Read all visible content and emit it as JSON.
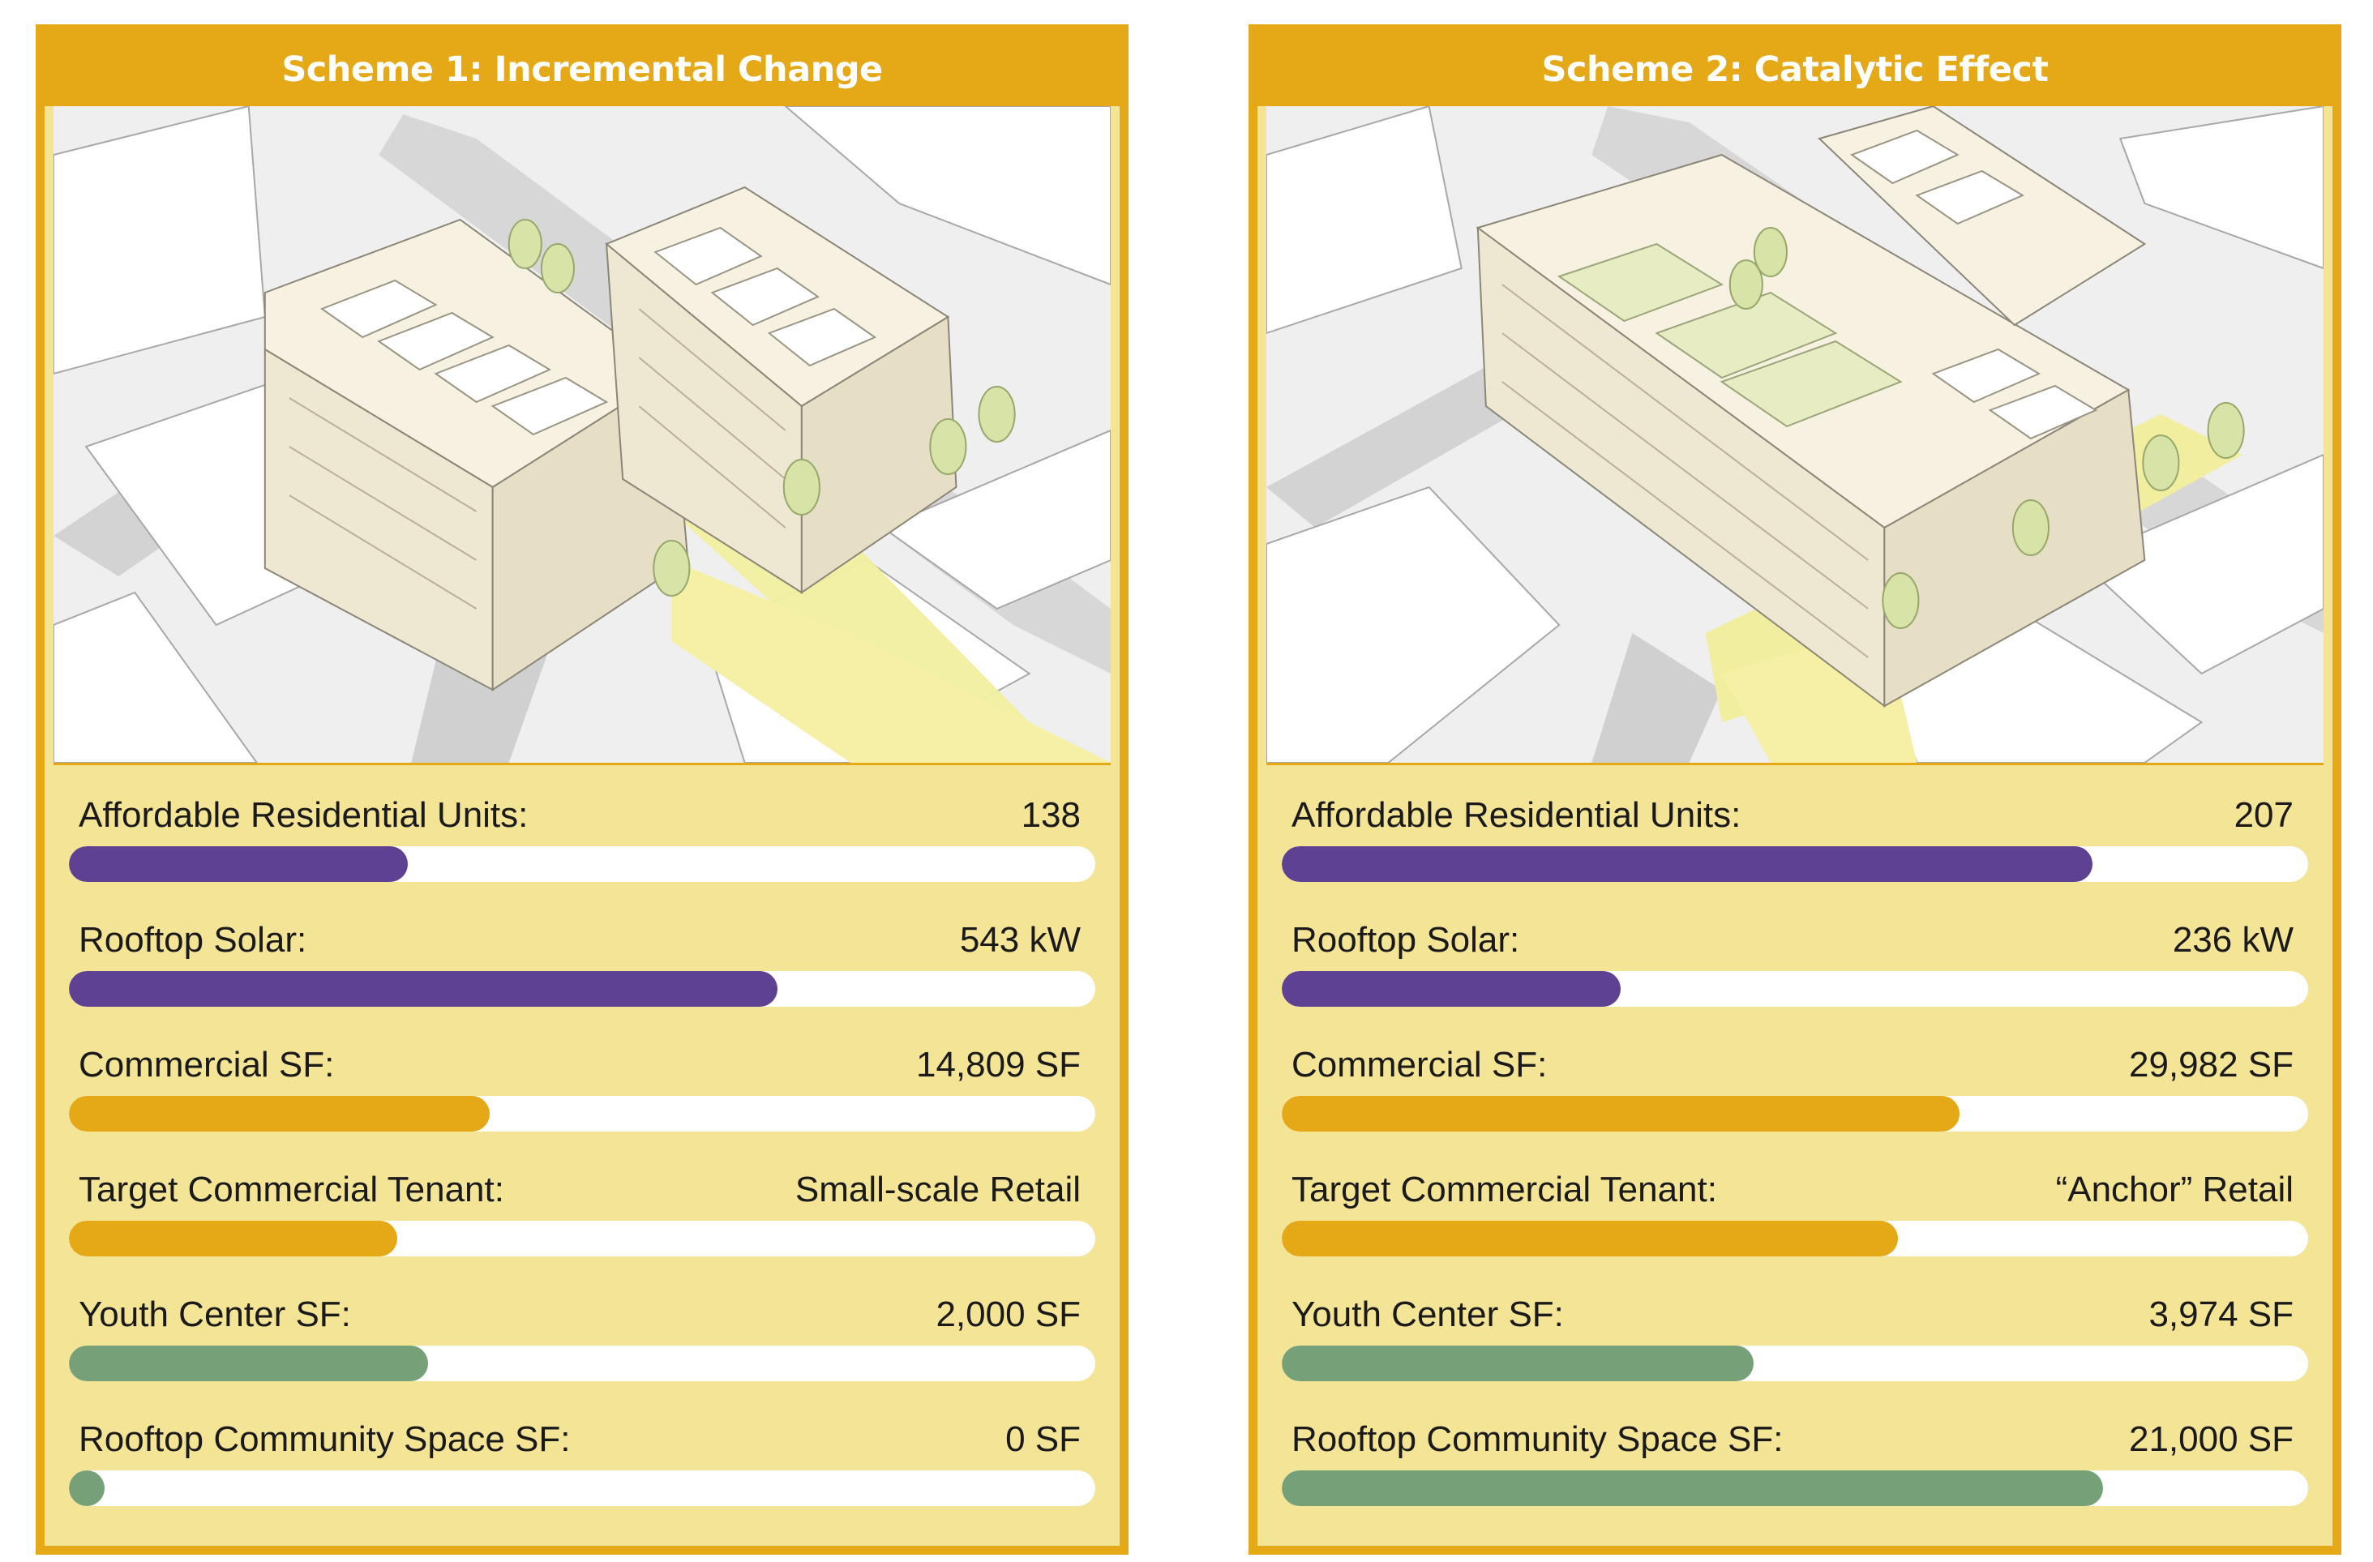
{
  "schemes": [
    {
      "title": "Scheme 1: Incremental Change",
      "metrics": [
        {
          "label": "Affordable Residential Units:",
          "value": "138",
          "level": 0.33,
          "color": "purple"
        },
        {
          "label": "Rooftop Solar:",
          "value": "543 kW",
          "level": 0.69,
          "color": "purple"
        },
        {
          "label": "Commercial SF:",
          "value": "14,809 SF",
          "level": 0.41,
          "color": "gold"
        },
        {
          "label": "Target Commercial Tenant:",
          "value": "Small-scale Retail",
          "level": 0.32,
          "color": "gold"
        },
        {
          "label": "Youth Center SF:",
          "value": "2,000 SF",
          "level": 0.35,
          "color": "green"
        },
        {
          "label": "Rooftop Community Space SF:",
          "value": "0 SF",
          "level": 0.035,
          "color": "green"
        }
      ]
    },
    {
      "title": "Scheme 2: Catalytic Effect",
      "metrics": [
        {
          "label": "Affordable Residential Units:",
          "value": "207",
          "level": 0.79,
          "color": "purple"
        },
        {
          "label": "Rooftop Solar:",
          "value": "236 kW",
          "level": 0.33,
          "color": "purple"
        },
        {
          "label": "Commercial SF:",
          "value": "29,982 SF",
          "level": 0.66,
          "color": "gold"
        },
        {
          "label": "Target Commercial Tenant:",
          "value": "“Anchor” Retail",
          "level": 0.6,
          "color": "gold"
        },
        {
          "label": "Youth Center SF:",
          "value": "3,974 SF",
          "level": 0.46,
          "color": "green"
        },
        {
          "label": "Rooftop Community Space SF:",
          "value": "21,000 SF",
          "level": 0.8,
          "color": "green"
        }
      ]
    }
  ],
  "colors": {
    "frame": "#e5a817",
    "panel": "#f4e496",
    "purple": "#5f4194",
    "gold": "#e5a817",
    "green": "#76a078"
  }
}
